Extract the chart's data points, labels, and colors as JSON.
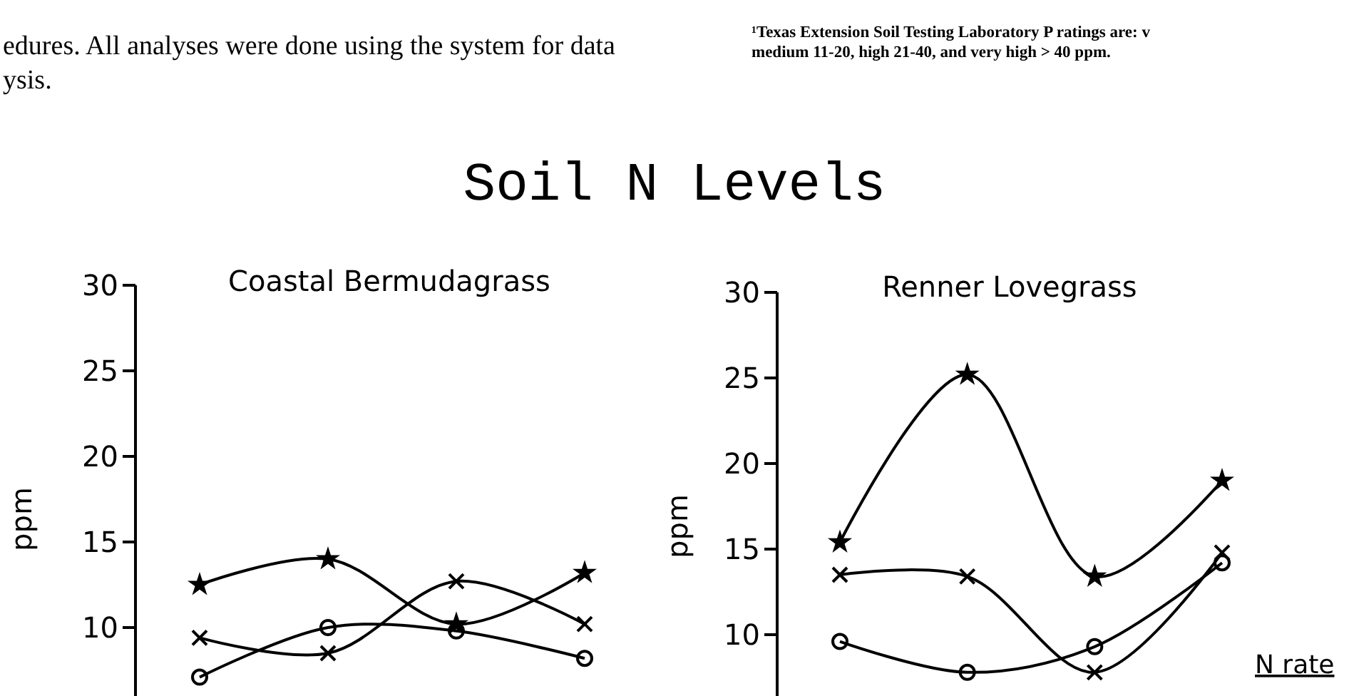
{
  "chart_data": [
    {
      "type": "line",
      "title": "Soil N Levels",
      "subtitle": "Coastal Bermudagrass",
      "ylabel": "ppm",
      "categories": [
        null,
        null,
        null,
        null
      ],
      "ylim": [
        6,
        30
      ],
      "yticks": [
        10,
        15,
        20,
        25,
        30
      ],
      "grid": false,
      "line_style": "solid",
      "annotations": [
        "edures. All analyses were done using the system for data",
        "ysis."
      ],
      "series": [
        {
          "color": "#000000",
          "marker": "star",
          "values": [
            12.5,
            14,
            10.2,
            13.2
          ]
        },
        {
          "color": "#000000",
          "marker": "cross",
          "values": [
            9.4,
            8.5,
            12.7,
            10.2
          ]
        },
        {
          "color": "#000000",
          "marker": "circle",
          "values": [
            7.1,
            10,
            9.8,
            8.2
          ]
        }
      ]
    },
    {
      "type": "line",
      "subtitle": "Renner Lovegrass",
      "ylabel": "ppm",
      "legend_title": "N rate",
      "categories": [
        null,
        null,
        null,
        null
      ],
      "ylim": [
        6,
        30
      ],
      "yticks": [
        10,
        15,
        20,
        25,
        30
      ],
      "grid": false,
      "line_style": "solid",
      "annotations": [
        "¹Texas Extension Soil Testing Laboratory P ratings are: v",
        "medium 11-20, high 21-40, and very high > 40 ppm."
      ],
      "series": [
        {
          "color": "#000000",
          "marker": "star",
          "values": [
            15.4,
            25.2,
            13.4,
            19
          ]
        },
        {
          "color": "#000000",
          "marker": "cross",
          "values": [
            13.5,
            13.4,
            7.8,
            14.8
          ]
        },
        {
          "color": "#000000",
          "marker": "circle",
          "values": [
            9.6,
            7.8,
            9.3,
            14.2
          ]
        }
      ]
    }
  ]
}
